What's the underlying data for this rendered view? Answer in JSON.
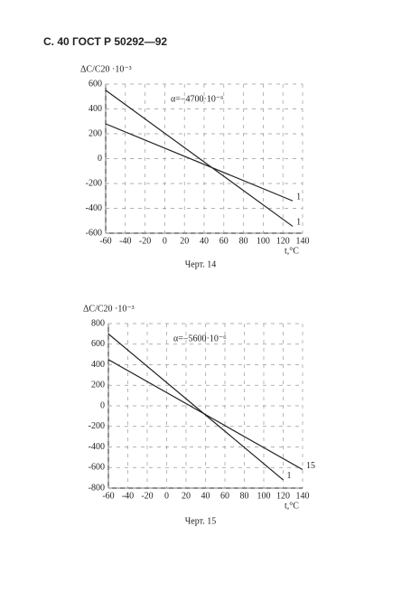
{
  "header": "С. 40 ГОСТ Р 50292—92",
  "captions": [
    "Черт. 14",
    "Черт. 15"
  ],
  "chart_data": [
    {
      "type": "line",
      "y_label": "ΔC/C20 ·10⁻³",
      "x_label": "t,°C",
      "annotation": "α=−4700·10⁻⁶",
      "color": "#222",
      "grid": true,
      "xlim": [
        -60,
        140
      ],
      "xticks": [
        -60,
        -40,
        -20,
        0,
        20,
        40,
        60,
        80,
        100,
        120,
        140
      ],
      "ylim": [
        -600,
        600
      ],
      "yticks": [
        600,
        400,
        200,
        0,
        -200,
        -400,
        -600
      ],
      "series": [
        {
          "name": "1",
          "x": [
            -60,
            130
          ],
          "values": [
            280,
            -340
          ]
        },
        {
          "name": "1",
          "x": [
            -60,
            130
          ],
          "values": [
            550,
            -545
          ]
        }
      ]
    },
    {
      "type": "line",
      "y_label": "ΔC/C20 ·10⁻³",
      "x_label": "t,°C",
      "annotation": "α=−5600·10⁻⁶",
      "color": "#222",
      "grid": true,
      "xlim": [
        -60,
        140
      ],
      "xticks": [
        -60,
        -40,
        -20,
        0,
        20,
        40,
        60,
        80,
        100,
        120,
        140
      ],
      "ylim": [
        -800,
        800
      ],
      "yticks": [
        800,
        600,
        400,
        200,
        0,
        -200,
        -400,
        -600,
        -800
      ],
      "series": [
        {
          "name": "15",
          "x": [
            -60,
            140
          ],
          "values": [
            450,
            -620
          ]
        },
        {
          "name": "1",
          "x": [
            -60,
            120
          ],
          "values": [
            700,
            -720
          ]
        }
      ]
    }
  ]
}
